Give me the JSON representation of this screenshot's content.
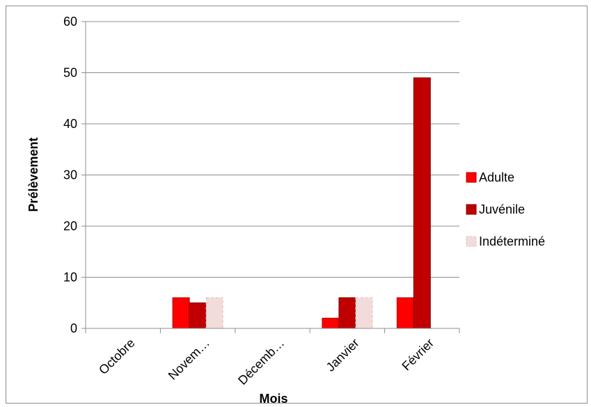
{
  "chart_data": {
    "type": "bar",
    "title": "",
    "xlabel": "Mois",
    "ylabel": "Prélèvement",
    "categories": [
      "Octobre",
      "Novem…",
      "Décemb…",
      "Janvier",
      "Février"
    ],
    "series": [
      {
        "name": "Adulte",
        "values": [
          0,
          6,
          0,
          2,
          6
        ],
        "color": "#ff0000",
        "stroke": "#b30000",
        "dashed": false
      },
      {
        "name": "Juvénile",
        "values": [
          0,
          5,
          0,
          6,
          49
        ],
        "color": "#c00000",
        "stroke": "#7a0000",
        "dashed": false
      },
      {
        "name": "Indéterminé",
        "values": [
          0,
          6,
          0,
          6,
          0
        ],
        "color": "#f2dcdb",
        "stroke": "#e6b9b8",
        "dashed": true
      }
    ],
    "ylim": [
      0,
      60
    ],
    "yticks": [
      0,
      10,
      20,
      30,
      40,
      50,
      60
    ],
    "grid": true,
    "legend": "right"
  }
}
